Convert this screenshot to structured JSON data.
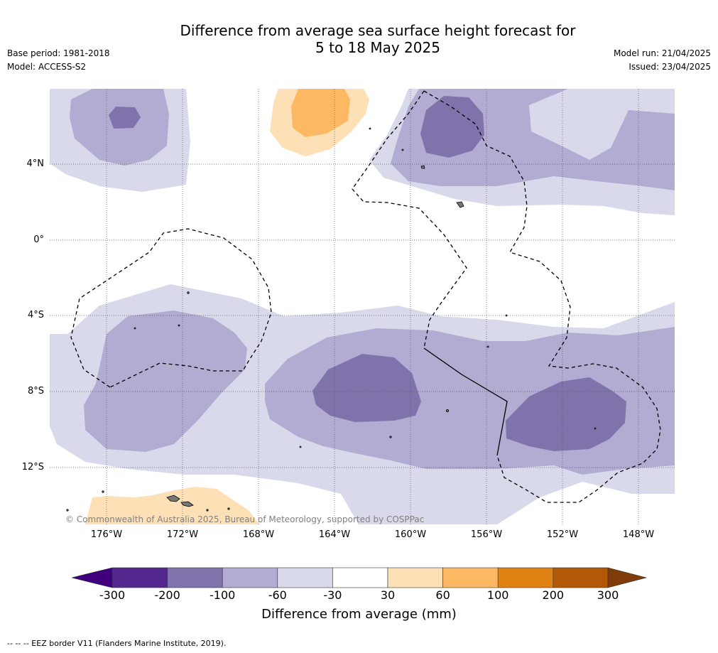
{
  "title_line1": "Difference from average sea surface height forecast for",
  "title_line2": "5 to 18 May 2025",
  "base_period": "Base period: 1981-2018",
  "model": "Model: ACCESS-S2",
  "model_run": "Model run: 21/04/2025",
  "issued": "Issued: 23/04/2025",
  "lat_labels": [
    "4°N",
    "0°",
    "4°S",
    "8°S",
    "12°S"
  ],
  "lon_labels": [
    "176°W",
    "172°W",
    "168°W",
    "164°W",
    "160°W",
    "156°W",
    "152°W",
    "148°W"
  ],
  "copyright": "© Commonwealth of Australia 2025, Bureau of Meteorology, supported by COSPPac",
  "colorbar": {
    "ticks": [
      "-300",
      "-200",
      "-100",
      "-60",
      "-30",
      "30",
      "60",
      "100",
      "200",
      "300"
    ],
    "label": "Difference from average (mm)",
    "colors": [
      "#3f007d",
      "#54278f",
      "#8073ac",
      "#b2abd2",
      "#d8daeb",
      "#ffffff",
      "#fee0b6",
      "#fdb863",
      "#e08214",
      "#b35806",
      "#7f3b08"
    ]
  },
  "footnote": "--  --  -- EEZ border V11 (Flanders Marine Institute, 2019)."
}
